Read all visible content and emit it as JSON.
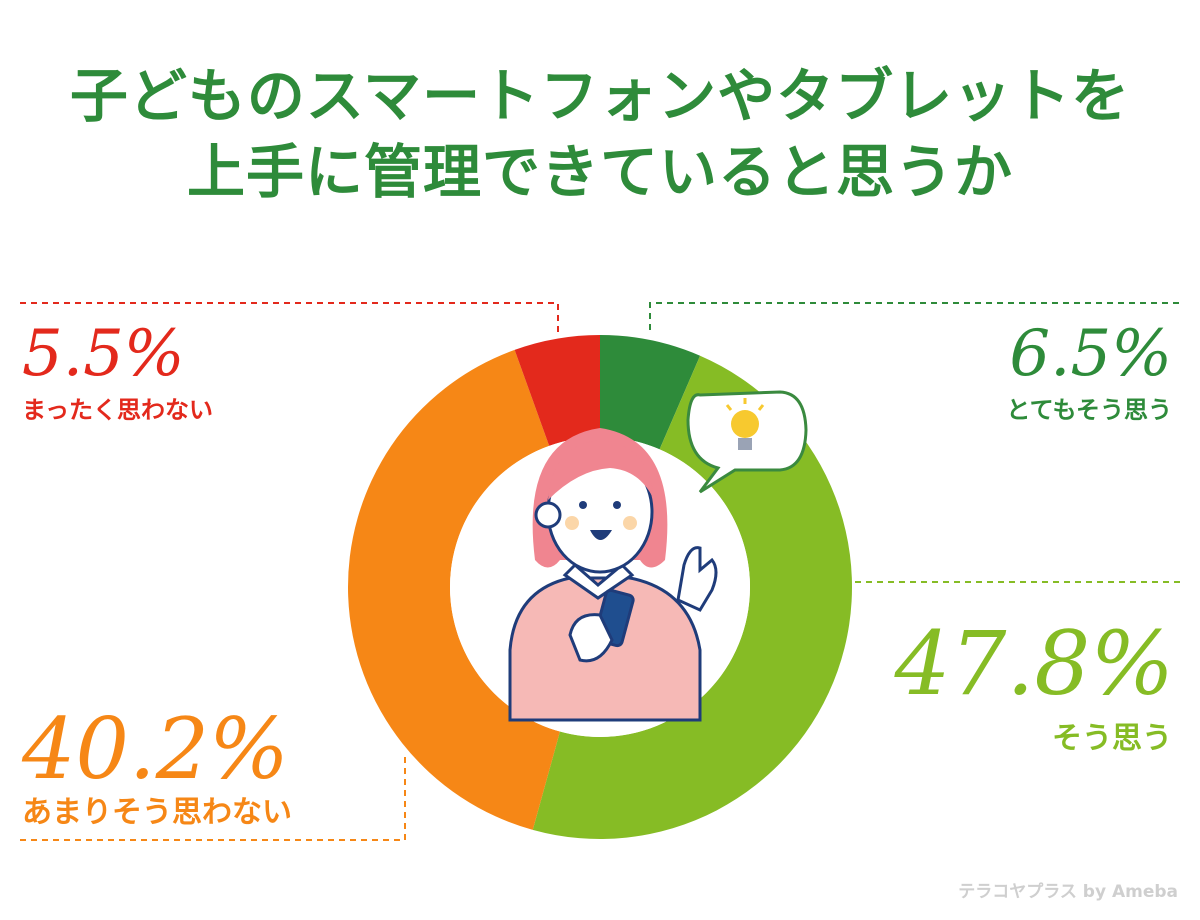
{
  "header": {
    "title_line1": "子どものスマートフォンやタブレットを",
    "title_line2": "上手に管理できていると思うか"
  },
  "colors": {
    "title": "#2e8b3a",
    "very_much": "#2e8b3a",
    "agree": "#86bc25",
    "somewhat_disagree": "#f68716",
    "strongly_disagree": "#e3291c"
  },
  "chart_data": {
    "type": "pie",
    "title": "子どものスマートフォンやタブレットを上手に管理できていると思うか",
    "unit": "%",
    "slices": [
      {
        "label": "とてもそう思う",
        "value": 6.5,
        "display": "6.5%",
        "color": "#2e8b3a"
      },
      {
        "label": "そう思う",
        "value": 47.8,
        "display": "47.8%",
        "color": "#86bc25"
      },
      {
        "label": "あまりそう思わない",
        "value": 40.2,
        "display": "40.2%",
        "color": "#f68716"
      },
      {
        "label": "まったく思わない",
        "value": 5.5,
        "display": "5.5%",
        "color": "#e3291c"
      }
    ]
  },
  "illustration": {
    "subject": "person-holding-smartphone-with-lightbulb-idea"
  },
  "footer": {
    "watermark": "テラコヤプラス by Ameba"
  }
}
